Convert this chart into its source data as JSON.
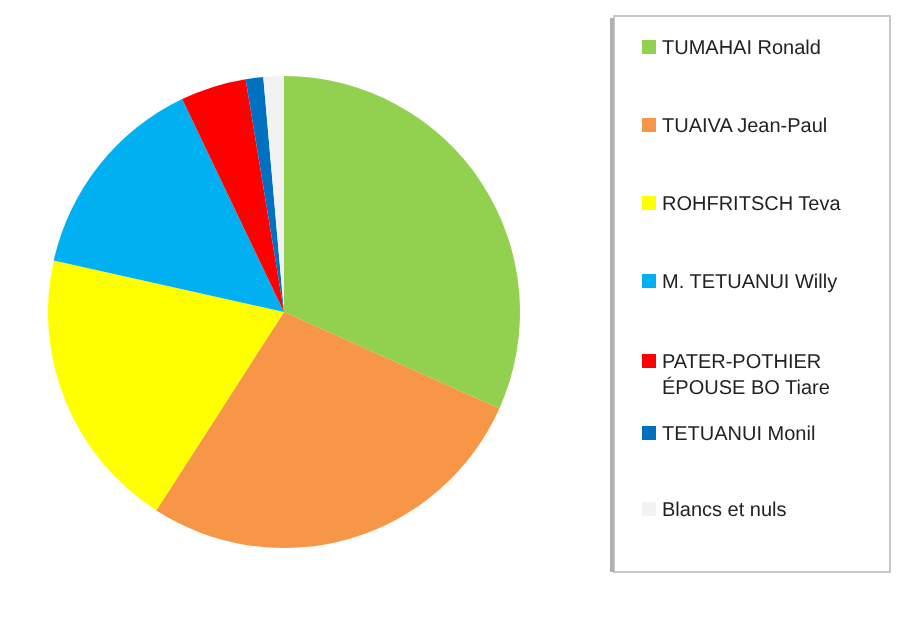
{
  "chart_data": {
    "type": "pie",
    "categories": [
      "TUMAHAI Ronald",
      "TUAIVA Jean-Paul",
      "ROHFRITSCH Teva",
      "M. TETUANUI Willy",
      "PATER-POTHIER ÉPOUSE BO Tiare",
      "TETUANUI Monil",
      "Blancs et nuls"
    ],
    "values": [
      31.7,
      27.4,
      19.4,
      14.4,
      4.5,
      1.2,
      1.4
    ],
    "colors": [
      "#92d050",
      "#f79646",
      "#ffff00",
      "#00b0f0",
      "#ff0000",
      "#0070c0",
      "#f2f2f2"
    ],
    "legend": "right"
  }
}
